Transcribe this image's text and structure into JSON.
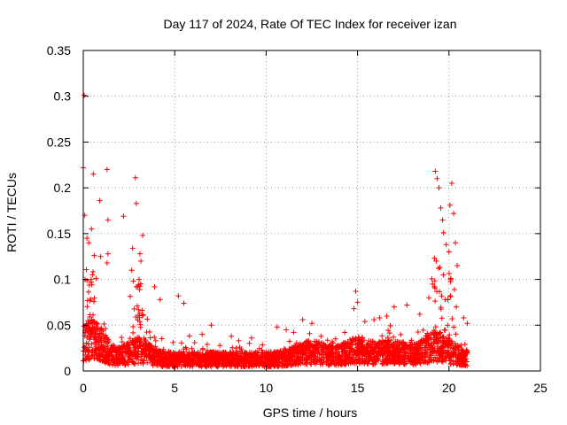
{
  "chart_data": {
    "type": "scatter",
    "title": "Day 117 of 2024, Rate Of TEC Index for receiver izan",
    "xlabel": "GPS time / hours",
    "ylabel": "ROTI / TECUs",
    "xlim": [
      0,
      25
    ],
    "ylim": [
      0,
      0.35
    ],
    "x_ticks": [
      0,
      5,
      10,
      15,
      20,
      25
    ],
    "x_tick_labels": [
      "0",
      "5",
      "10",
      "15",
      "20",
      "25"
    ],
    "y_ticks": [
      0,
      0.05,
      0.1,
      0.15,
      0.2,
      0.25,
      0.3,
      0.35
    ],
    "y_tick_labels": [
      "0",
      "0.05",
      "0.1",
      "0.15",
      "0.2",
      "0.25",
      "0.3",
      "0.35"
    ],
    "grid": true,
    "marker": "+",
    "marker_color": "#ff0000",
    "series": [
      {
        "name": "ROTI",
        "points": [
          [
            0.05,
            0.301
          ],
          [
            0.0,
            0.222
          ],
          [
            0.55,
            0.215
          ],
          [
            1.3,
            0.22
          ],
          [
            2.85,
            0.211
          ],
          [
            0.9,
            0.186
          ],
          [
            1.35,
            0.165
          ],
          [
            2.9,
            0.183
          ],
          [
            0.08,
            0.17
          ],
          [
            0.45,
            0.155
          ],
          [
            2.2,
            0.169
          ],
          [
            0.2,
            0.145
          ],
          [
            0.3,
            0.14
          ],
          [
            0.6,
            0.126
          ],
          [
            0.95,
            0.125
          ],
          [
            1.35,
            0.128
          ],
          [
            1.3,
            0.118
          ],
          [
            0.5,
            0.105
          ],
          [
            0.7,
            0.101
          ],
          [
            2.7,
            0.134
          ],
          [
            3.25,
            0.148
          ],
          [
            3.1,
            0.128
          ],
          [
            3.15,
            0.12
          ],
          [
            2.65,
            0.11
          ],
          [
            3.05,
            0.1
          ],
          [
            3.9,
            0.092
          ],
          [
            4.2,
            0.078
          ],
          [
            5.2,
            0.082
          ],
          [
            5.5,
            0.074
          ],
          [
            2.9,
            0.092
          ],
          [
            19.25,
            0.218
          ],
          [
            19.45,
            0.2
          ],
          [
            19.35,
            0.21
          ],
          [
            20.15,
            0.205
          ],
          [
            20.05,
            0.181
          ],
          [
            19.55,
            0.178
          ],
          [
            19.65,
            0.165
          ],
          [
            20.25,
            0.172
          ],
          [
            19.7,
            0.151
          ],
          [
            20.35,
            0.14
          ],
          [
            19.85,
            0.138
          ],
          [
            20.0,
            0.13
          ],
          [
            19.3,
            0.12
          ],
          [
            19.5,
            0.113
          ],
          [
            20.45,
            0.115
          ],
          [
            20.1,
            0.101
          ],
          [
            19.2,
            0.092
          ],
          [
            20.3,
            0.089
          ],
          [
            19.6,
            0.082
          ],
          [
            20.4,
            0.07
          ],
          [
            14.9,
            0.087
          ],
          [
            15.0,
            0.075
          ],
          [
            14.8,
            0.068
          ],
          [
            17.0,
            0.07
          ],
          [
            16.6,
            0.06
          ],
          [
            16.2,
            0.058
          ],
          [
            15.4,
            0.054
          ],
          [
            12.0,
            0.056
          ],
          [
            10.6,
            0.048
          ],
          [
            7.0,
            0.05
          ],
          [
            6.5,
            0.04
          ],
          [
            8.1,
            0.038
          ],
          [
            8.5,
            0.033
          ],
          [
            9.2,
            0.036
          ],
          [
            11.1,
            0.045
          ],
          [
            12.5,
            0.052
          ],
          [
            13.0,
            0.038
          ],
          [
            13.8,
            0.035
          ],
          [
            14.3,
            0.042
          ],
          [
            15.9,
            0.056
          ],
          [
            17.7,
            0.072
          ],
          [
            18.4,
            0.062
          ],
          [
            18.9,
            0.08
          ],
          [
            20.8,
            0.058
          ],
          [
            21.0,
            0.052
          ]
        ]
      }
    ]
  }
}
